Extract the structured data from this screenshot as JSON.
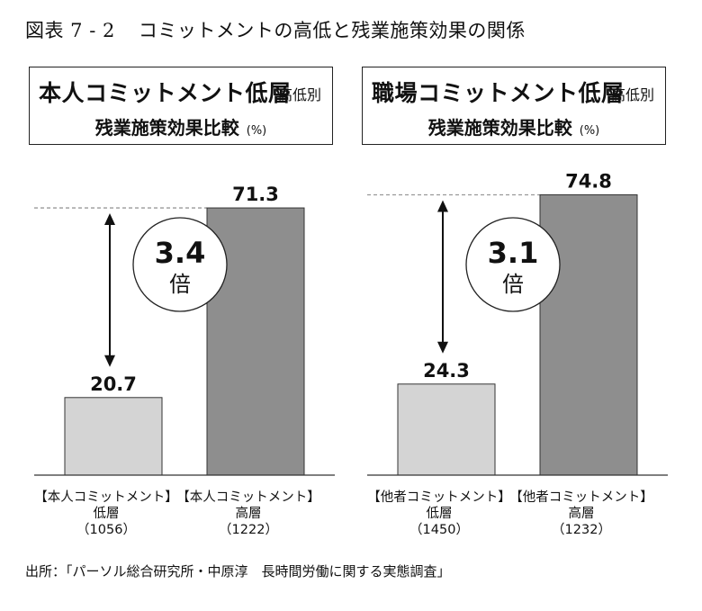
{
  "figure": {
    "number": "図表 7 - 2",
    "title": "コミットメントの高低と残業施策効果の関係"
  },
  "source": "出所：「パーソル総合研究所・中原淳　長時間労働に関する実態調査」",
  "chart_data": [
    {
      "type": "bar",
      "title": "本人コミットメント低層",
      "title_tag": "高低別",
      "subtitle": "残業施策効果比較",
      "unit": "(%)",
      "categories": [
        {
          "line1": "【本人コミットメント】",
          "line2": "低層",
          "line3": "（1056）"
        },
        {
          "line1": "【本人コミットメント】",
          "line2": "高層",
          "line3": "（1222）"
        }
      ],
      "values": [
        20.7,
        71.3
      ],
      "value_labels": [
        "20.7",
        "71.3"
      ],
      "bar_colors": [
        "#d4d4d4",
        "#8e8e8e"
      ],
      "ylim": [
        0,
        85
      ],
      "ratio": {
        "value": "3.4",
        "unit": "倍"
      }
    },
    {
      "type": "bar",
      "title": "職場コミットメント低層",
      "title_tag": "高低別",
      "subtitle": "残業施策効果比較",
      "unit": "(%)",
      "categories": [
        {
          "line1": "【他者コミットメント】",
          "line2": "低層",
          "line3": "（1450）"
        },
        {
          "line1": "【他者コミットメント】",
          "line2": "高層",
          "line3": "（1232）"
        }
      ],
      "values": [
        24.3,
        74.8
      ],
      "value_labels": [
        "24.3",
        "74.8"
      ],
      "bar_colors": [
        "#d4d4d4",
        "#8e8e8e"
      ],
      "ylim": [
        0,
        85
      ],
      "ratio": {
        "value": "3.1",
        "unit": "倍"
      }
    }
  ]
}
